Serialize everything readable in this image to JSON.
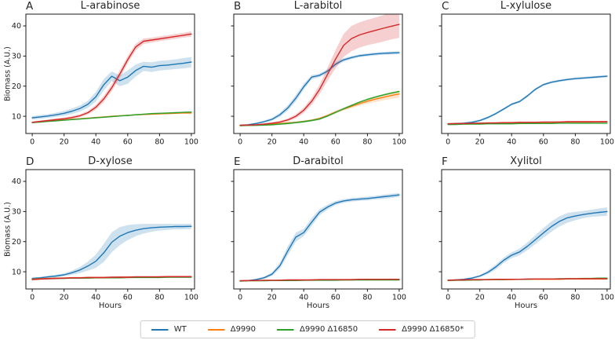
{
  "figure": {
    "ylabel": "Biomass (A.U.)",
    "xlabel": "Hours",
    "legend": [
      {
        "key": "wt",
        "label": "WT"
      },
      {
        "key": "d9990",
        "label": "Δ9990"
      },
      {
        "key": "d9990_16850",
        "label": "Δ9990 Δ16850"
      },
      {
        "key": "d9990_16850s",
        "label": "Δ9990 Δ16850*"
      }
    ]
  },
  "chart_data": {
    "type": "line",
    "grid": false,
    "legend_position": "bottom-center",
    "colors": {
      "wt": "#1f77b4",
      "d9990": "#ff7f0e",
      "d9990_16850": "#2ca02c",
      "d9990_16850s": "#d62728"
    },
    "band_opacity": 0.22,
    "xlim": [
      -4,
      102
    ],
    "ylim": [
      4.3,
      43.9
    ],
    "x_ticks": [
      0,
      20,
      40,
      60,
      80,
      100
    ],
    "y_ticks": [
      10,
      20,
      30,
      40
    ],
    "x": [
      0,
      5,
      10,
      15,
      20,
      25,
      30,
      35,
      40,
      45,
      50,
      55,
      60,
      65,
      70,
      75,
      80,
      85,
      90,
      95,
      100
    ],
    "panels": [
      {
        "letter": "A",
        "title": "L-arabinose",
        "show_y_labels": true,
        "show_xlabel": false,
        "series": [
          {
            "key": "wt",
            "name": "WT",
            "y": [
              9.5,
              9.8,
              10.1,
              10.5,
              11.0,
              11.7,
              12.6,
              14.0,
              16.5,
              20.5,
              23.3,
              21.8,
              23.0,
              25.2,
              26.6,
              26.3,
              26.8,
              27.0,
              27.3,
              27.6,
              28.0
            ],
            "b": [
              0.6,
              0.6,
              0.6,
              0.7,
              0.8,
              0.9,
              1.0,
              1.2,
              1.6,
              1.9,
              1.6,
              1.8,
              2.2,
              2.0,
              1.5,
              1.6,
              1.6,
              1.6,
              1.6,
              1.7,
              1.7
            ]
          },
          {
            "key": "d9990",
            "name": "Δ9990",
            "y": [
              8.0,
              8.2,
              8.4,
              8.6,
              8.8,
              9.0,
              9.2,
              9.4,
              9.6,
              9.8,
              10.0,
              10.2,
              10.3,
              10.5,
              10.6,
              10.7,
              10.8,
              10.9,
              11.0,
              11.1,
              11.1
            ],
            "b": 0.2
          },
          {
            "key": "d9990_16850",
            "name": "Δ9990 Δ16850",
            "y": [
              7.9,
              8.1,
              8.3,
              8.5,
              8.7,
              8.9,
              9.1,
              9.3,
              9.5,
              9.7,
              9.9,
              10.1,
              10.3,
              10.5,
              10.7,
              10.9,
              11.0,
              11.1,
              11.2,
              11.3,
              11.4
            ],
            "b": 0.2
          },
          {
            "key": "d9990_16850s",
            "name": "Δ9990 Δ16850*",
            "y": [
              8.0,
              8.3,
              8.6,
              8.9,
              9.2,
              9.6,
              10.2,
              11.2,
              13.0,
              15.8,
              19.5,
              24.0,
              28.8,
              33.0,
              34.9,
              35.3,
              35.7,
              36.1,
              36.5,
              36.9,
              37.3
            ],
            "b": [
              0.3,
              0.3,
              0.3,
              0.4,
              0.4,
              0.5,
              0.5,
              0.6,
              0.8,
              1.0,
              1.2,
              1.3,
              1.2,
              1.1,
              0.9,
              0.8,
              0.8,
              0.8,
              0.8,
              0.8,
              0.9
            ]
          }
        ]
      },
      {
        "letter": "B",
        "title": "L-arabitol",
        "show_y_labels": false,
        "show_xlabel": false,
        "series": [
          {
            "key": "wt",
            "name": "WT",
            "y": [
              7.0,
              7.2,
              7.6,
              8.2,
              9.0,
              10.5,
              12.8,
              16.0,
              19.8,
              23.0,
              23.6,
              25.0,
              27.3,
              28.7,
              29.5,
              30.1,
              30.4,
              30.7,
              30.9,
              31.0,
              31.1
            ],
            "b": [
              0.3,
              0.3,
              0.3,
              0.4,
              0.5,
              0.7,
              0.9,
              1.1,
              1.0,
              0.7,
              0.6,
              0.7,
              0.7,
              0.6,
              0.5,
              0.5,
              0.5,
              0.5,
              0.5,
              0.5,
              0.5
            ]
          },
          {
            "key": "d9990",
            "name": "Δ9990",
            "y": [
              7.0,
              7.0,
              7.1,
              7.2,
              7.4,
              7.6,
              7.8,
              8.0,
              8.3,
              8.7,
              9.3,
              10.3,
              11.4,
              12.4,
              13.3,
              14.2,
              15.0,
              15.7,
              16.3,
              16.9,
              17.4
            ],
            "b": [
              0.2,
              0.2,
              0.2,
              0.2,
              0.2,
              0.2,
              0.3,
              0.3,
              0.3,
              0.3,
              0.4,
              0.4,
              0.5,
              0.5,
              0.6,
              0.7,
              0.8,
              0.9,
              1.0,
              1.1,
              1.2
            ]
          },
          {
            "key": "d9990_16850",
            "name": "Δ9990 Δ16850",
            "y": [
              6.9,
              7.0,
              7.0,
              7.1,
              7.2,
              7.4,
              7.6,
              7.9,
              8.2,
              8.6,
              9.1,
              10.1,
              11.3,
              12.5,
              13.6,
              14.7,
              15.6,
              16.4,
              17.1,
              17.7,
              18.2
            ],
            "b": 0.3
          },
          {
            "key": "d9990_16850s",
            "name": "Δ9990 Δ16850*",
            "y": [
              7.0,
              7.1,
              7.2,
              7.4,
              7.7,
              8.1,
              8.8,
              10.0,
              12.0,
              15.0,
              19.0,
              24.0,
              29.0,
              33.5,
              35.8,
              37.0,
              37.8,
              38.5,
              39.2,
              39.9,
              40.5
            ],
            "b": [
              0.2,
              0.2,
              0.2,
              0.3,
              0.3,
              0.4,
              0.5,
              0.7,
              0.9,
              1.2,
              1.6,
              2.2,
              3.0,
              3.8,
              4.2,
              4.2,
              4.2,
              4.3,
              4.4,
              4.4,
              4.5
            ]
          }
        ]
      },
      {
        "letter": "C",
        "title": "L-xylulose",
        "show_y_labels": false,
        "show_xlabel": false,
        "series": [
          {
            "key": "wt",
            "name": "WT",
            "y": [
              7.4,
              7.5,
              7.7,
              8.0,
              8.6,
              9.6,
              10.9,
              12.4,
              14.0,
              14.9,
              16.8,
              19.0,
              20.5,
              21.3,
              21.8,
              22.2,
              22.5,
              22.7,
              22.9,
              23.1,
              23.3
            ],
            "b": 0.4
          },
          {
            "key": "d9990",
            "name": "Δ9990",
            "y": [
              7.5,
              7.5,
              7.6,
              7.6,
              7.7,
              7.7,
              7.8,
              7.8,
              7.9,
              7.9,
              7.9,
              8.0,
              8.0,
              8.0,
              8.1,
              8.1,
              8.1,
              8.1,
              8.1,
              8.2,
              8.2
            ],
            "b": 0.2
          },
          {
            "key": "d9990_16850",
            "name": "Δ9990 Δ16850",
            "y": [
              7.3,
              7.3,
              7.4,
              7.4,
              7.4,
              7.5,
              7.5,
              7.5,
              7.5,
              7.6,
              7.6,
              7.6,
              7.6,
              7.6,
              7.7,
              7.7,
              7.7,
              7.7,
              7.7,
              7.7,
              7.7
            ],
            "b": 0.15
          },
          {
            "key": "d9990_16850s",
            "name": "Δ9990 Δ16850*",
            "y": [
              7.5,
              7.6,
              7.6,
              7.7,
              7.7,
              7.8,
              7.8,
              7.9,
              7.9,
              8.0,
              8.0,
              8.0,
              8.1,
              8.1,
              8.1,
              8.2,
              8.2,
              8.2,
              8.2,
              8.2,
              8.2
            ],
            "b": 0.25
          }
        ]
      },
      {
        "letter": "D",
        "title": "D-xylose",
        "show_y_labels": true,
        "show_xlabel": true,
        "series": [
          {
            "key": "wt",
            "name": "WT",
            "y": [
              7.8,
              8.0,
              8.3,
              8.6,
              9.0,
              9.7,
              10.6,
              11.9,
              13.5,
              16.3,
              19.8,
              21.8,
              23.0,
              23.8,
              24.3,
              24.6,
              24.8,
              24.9,
              25.0,
              25.0,
              25.1
            ],
            "b": [
              0.3,
              0.3,
              0.4,
              0.4,
              0.5,
              0.7,
              1.0,
              1.5,
              2.2,
              3.0,
              3.3,
              3.0,
              2.5,
              2.0,
              1.6,
              1.3,
              1.1,
              1.0,
              0.9,
              0.9,
              0.9
            ]
          },
          {
            "key": "d9990",
            "name": "Δ9990",
            "y": [
              7.6,
              7.7,
              7.8,
              7.9,
              7.9,
              8.0,
              8.0,
              8.1,
              8.1,
              8.1,
              8.1,
              8.2,
              8.2,
              8.2,
              8.2,
              8.2,
              8.3,
              8.3,
              8.3,
              8.3,
              8.3
            ],
            "b": 0.2
          },
          {
            "key": "d9990_16850",
            "name": "Δ9990 Δ16850",
            "y": [
              7.5,
              7.6,
              7.7,
              7.8,
              7.8,
              7.9,
              7.9,
              7.9,
              8.0,
              8.0,
              8.0,
              8.0,
              8.1,
              8.1,
              8.1,
              8.1,
              8.1,
              8.2,
              8.2,
              8.2,
              8.2
            ],
            "b": 0.2
          },
          {
            "key": "d9990_16850s",
            "name": "Δ9990 Δ16850*",
            "y": [
              7.4,
              7.6,
              7.7,
              7.8,
              7.9,
              8.0,
              8.0,
              8.1,
              8.1,
              8.1,
              8.2,
              8.2,
              8.2,
              8.3,
              8.3,
              8.3,
              8.3,
              8.4,
              8.4,
              8.4,
              8.4
            ],
            "b": 0.3
          }
        ]
      },
      {
        "letter": "E",
        "title": "D-arabitol",
        "show_y_labels": false,
        "show_xlabel": true,
        "series": [
          {
            "key": "wt",
            "name": "WT",
            "y": [
              7.0,
              7.1,
              7.4,
              8.0,
              9.2,
              12.0,
              17.0,
              21.5,
              23.0,
              26.5,
              29.8,
              31.5,
              32.8,
              33.5,
              33.9,
              34.1,
              34.3,
              34.6,
              34.9,
              35.2,
              35.5
            ],
            "b": [
              0.2,
              0.2,
              0.3,
              0.4,
              0.6,
              1.0,
              1.5,
              1.5,
              1.2,
              1.3,
              1.0,
              0.8,
              0.7,
              0.6,
              0.6,
              0.6,
              0.6,
              0.6,
              0.7,
              0.7,
              0.7
            ]
          },
          {
            "key": "d9990",
            "name": "Δ9990",
            "y": [
              7.0,
              7.0,
              7.1,
              7.1,
              7.1,
              7.2,
              7.2,
              7.2,
              7.2,
              7.3,
              7.3,
              7.3,
              7.3,
              7.3,
              7.3,
              7.4,
              7.4,
              7.4,
              7.4,
              7.4,
              7.4
            ],
            "b": 0.15
          },
          {
            "key": "d9990_16850",
            "name": "Δ9990 Δ16850",
            "y": [
              6.9,
              7.0,
              7.0,
              7.0,
              7.1,
              7.1,
              7.1,
              7.1,
              7.2,
              7.2,
              7.2,
              7.2,
              7.2,
              7.3,
              7.3,
              7.3,
              7.3,
              7.3,
              7.3,
              7.3,
              7.3
            ],
            "b": 0.15
          },
          {
            "key": "d9990_16850s",
            "name": "Δ9990 Δ16850*",
            "y": [
              7.0,
              7.1,
              7.1,
              7.2,
              7.2,
              7.2,
              7.3,
              7.3,
              7.3,
              7.3,
              7.4,
              7.4,
              7.4,
              7.4,
              7.4,
              7.5,
              7.5,
              7.5,
              7.5,
              7.5,
              7.5
            ],
            "b": 0.2
          }
        ]
      },
      {
        "letter": "F",
        "title": "Xylitol",
        "show_y_labels": false,
        "show_xlabel": true,
        "series": [
          {
            "key": "wt",
            "name": "WT",
            "y": [
              7.2,
              7.3,
              7.5,
              7.9,
              8.6,
              9.8,
              11.6,
              13.8,
              15.5,
              16.6,
              18.5,
              20.7,
              22.9,
              25.0,
              26.7,
              27.9,
              28.5,
              29.0,
              29.4,
              29.7,
              30.0
            ],
            "b": [
              0.2,
              0.2,
              0.3,
              0.3,
              0.4,
              0.6,
              0.8,
              0.9,
              1.0,
              1.1,
              1.3,
              1.5,
              1.6,
              1.7,
              1.7,
              1.6,
              1.4,
              1.2,
              1.2,
              1.3,
              1.4
            ]
          },
          {
            "key": "d9990",
            "name": "Δ9990",
            "y": [
              7.2,
              7.2,
              7.3,
              7.3,
              7.3,
              7.4,
              7.4,
              7.4,
              7.4,
              7.5,
              7.5,
              7.5,
              7.5,
              7.5,
              7.5,
              7.6,
              7.6,
              7.6,
              7.6,
              7.6,
              7.6
            ],
            "b": 0.15
          },
          {
            "key": "d9990_16850",
            "name": "Δ9990 Δ16850",
            "y": [
              7.1,
              7.2,
              7.2,
              7.3,
              7.3,
              7.4,
              7.4,
              7.4,
              7.5,
              7.5,
              7.5,
              7.6,
              7.6,
              7.6,
              7.7,
              7.7,
              7.7,
              7.8,
              7.8,
              7.9,
              7.9
            ],
            "b": 0.15
          },
          {
            "key": "d9990_16850s",
            "name": "Δ9990 Δ16850*",
            "y": [
              7.2,
              7.3,
              7.3,
              7.4,
              7.4,
              7.4,
              7.5,
              7.5,
              7.5,
              7.5,
              7.6,
              7.6,
              7.6,
              7.6,
              7.6,
              7.7,
              7.7,
              7.7,
              7.7,
              7.7,
              7.7
            ],
            "b": 0.2
          }
        ]
      }
    ]
  }
}
